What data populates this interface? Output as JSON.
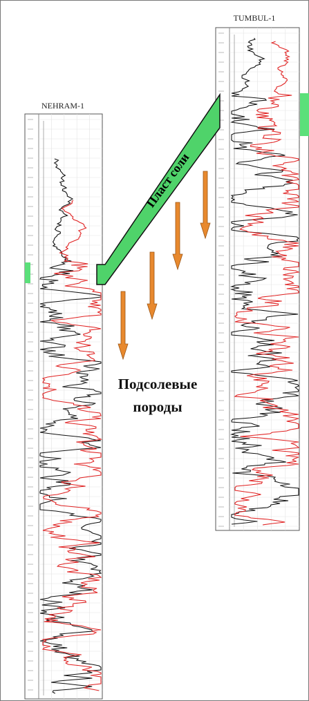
{
  "wells": [
    {
      "name": "NEHRAM-1"
    },
    {
      "name": "TUMBUL-1"
    }
  ],
  "salt_layer": {
    "label": "Пласт соли"
  },
  "subsalt": {
    "lines": [
      "Подсолевые",
      "породы"
    ]
  }
}
